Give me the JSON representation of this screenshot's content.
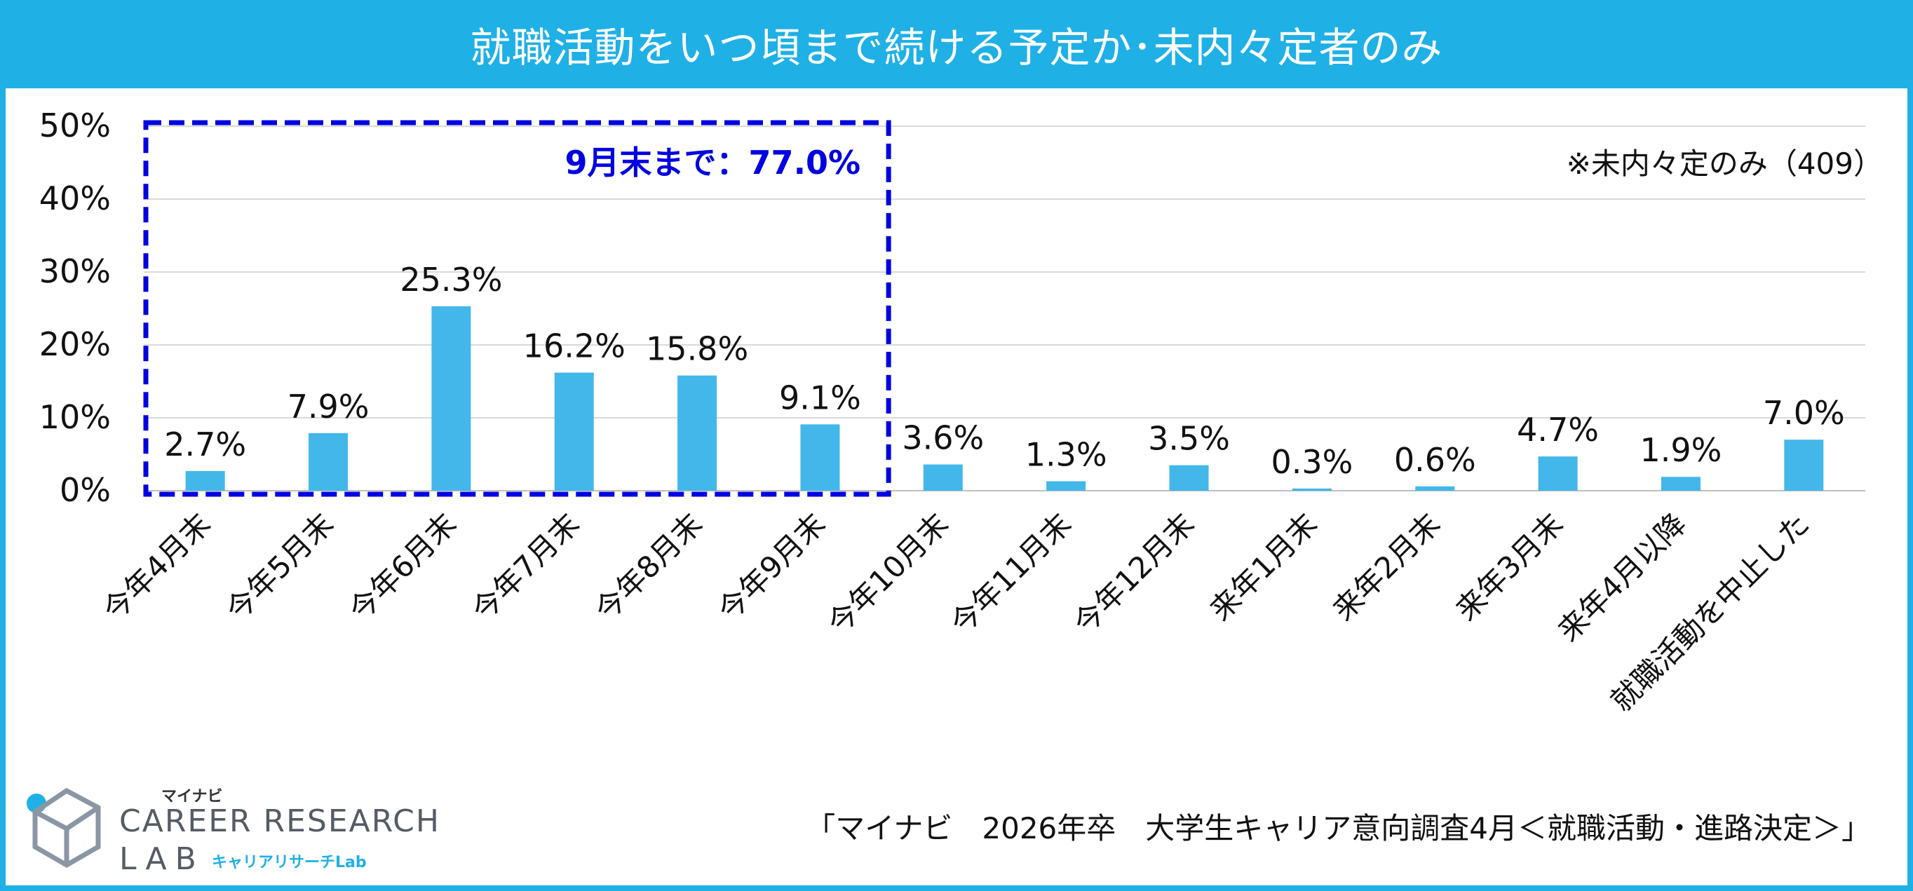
{
  "header": {
    "title": "就職活動をいつ頃まで続ける予定か･未内々定者のみ"
  },
  "chart_data": {
    "type": "bar",
    "categories": [
      "今年4月末",
      "今年5月末",
      "今年6月末",
      "今年7月末",
      "今年8月末",
      "今年9月末",
      "今年10月末",
      "今年11月末",
      "今年12月末",
      "来年1月末",
      "来年2月末",
      "来年3月末",
      "来年4月以降",
      "就職活動を中止した"
    ],
    "values": [
      2.7,
      7.9,
      25.3,
      16.2,
      15.8,
      9.1,
      3.6,
      1.3,
      3.5,
      0.3,
      0.6,
      4.7,
      1.9,
      7.0
    ],
    "value_labels": [
      "2.7%",
      "7.9%",
      "25.3%",
      "16.2%",
      "15.8%",
      "9.1%",
      "3.6%",
      "1.3%",
      "3.5%",
      "0.3%",
      "0.6%",
      "4.7%",
      "1.9%",
      "7.0%"
    ],
    "y_ticks": [
      "0%",
      "10%",
      "20%",
      "30%",
      "40%",
      "50%"
    ],
    "ylim": [
      0,
      50
    ],
    "grid": true,
    "bar_color": "#43b7e9",
    "annotation": {
      "text": "9月末まで：77.0%",
      "covers_categories": 6,
      "color": "#0000e0"
    },
    "note": "※未内々定のみ（409）"
  },
  "footer": {
    "source": "「マイナビ　2026年卒　大学生キャリア意向調査4月＜就職活動・進路決定＞」"
  },
  "logo": {
    "kana": "マイナビ",
    "line1": "CAREER RESEARCH",
    "line2": "LAB",
    "sub": "キャリアリサーチLab"
  },
  "colors": {
    "accent": "#1fb0e6",
    "bar": "#43b7e9",
    "highlight": "#0000e0"
  }
}
